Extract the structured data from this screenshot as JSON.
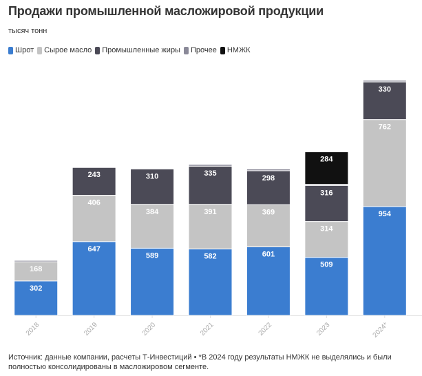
{
  "chart_data": {
    "type": "bar",
    "stacked": true,
    "title": "Продажи промышленной масложировой продукции",
    "subtitle": "тысяч тонн",
    "xlabel": "",
    "ylabel": "",
    "categories": [
      "2018",
      "2019",
      "2020",
      "2021",
      "2022",
      "2023",
      "2024*"
    ],
    "series": [
      {
        "name": "Шрот",
        "color": "#3b7dd0",
        "label_color": "#ffffff",
        "values": [
          302,
          647,
          589,
          582,
          601,
          509,
          954
        ]
      },
      {
        "name": "Сырое масло",
        "color": "#c4c4c4",
        "label_color": "#ffffff",
        "values": [
          168,
          406,
          384,
          391,
          369,
          314,
          762
        ]
      },
      {
        "name": "Промышленные жиры",
        "color": "#4b4a56",
        "label_color": "#ffffff",
        "values": [
          0,
          243,
          310,
          335,
          298,
          316,
          330
        ]
      },
      {
        "name": "Прочее",
        "color": "#8a8998",
        "label_color": "#ffffff",
        "values": [
          12,
          0,
          0,
          15,
          15,
          10,
          15
        ],
        "labels_shown": false
      },
      {
        "name": "НМЖК",
        "color": "#111111",
        "label_color": "#ffffff",
        "values": [
          0,
          0,
          0,
          0,
          0,
          284,
          0
        ]
      }
    ],
    "ylim": [
      0,
      2100
    ],
    "grid": false,
    "legend": "top-left",
    "data_labels": true
  },
  "footer": {
    "line1": "Источник: данные компании, расчеты Т-Инвестиций • *В 2024 году результаты НМЖК не выделялись и были",
    "line2": "полностью консолидированы в масложировом сегменте."
  }
}
